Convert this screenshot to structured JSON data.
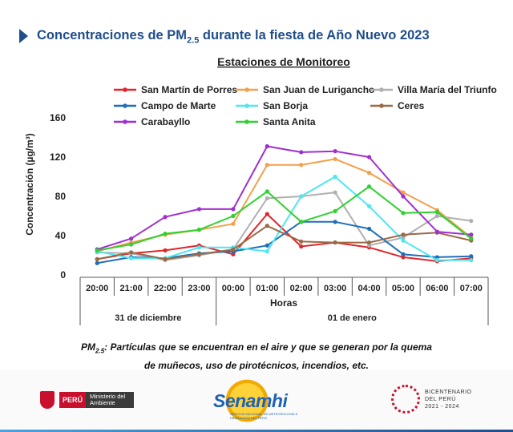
{
  "header": {
    "title_main": "Concentraciones  de PM",
    "title_sub": "2.5",
    "title_tail": " durante la fiesta de Año Nuevo 2023"
  },
  "chart_data": {
    "type": "line",
    "title": "Estaciones de Monitoreo",
    "xlabel": "Horas",
    "ylabel": "Concentración (µg/m³)",
    "ylim": [
      0,
      160
    ],
    "yticks": [
      0,
      40,
      80,
      120,
      160
    ],
    "grid": false,
    "legend_position": "top",
    "categories": [
      "20:00",
      "21:00",
      "22:00",
      "23:00",
      "00:00",
      "01:00",
      "02:00",
      "03:00",
      "04:00",
      "05:00",
      "06:00",
      "07:00"
    ],
    "day_groups": [
      {
        "label": "31 de diciembre",
        "span": 4
      },
      {
        "label": "01 de enero",
        "span": 8
      }
    ],
    "series": [
      {
        "name": "San Martín de Porres",
        "color": "#e0262b",
        "values": [
          16,
          22,
          25,
          30,
          21,
          62,
          29,
          33,
          28,
          18,
          14,
          17
        ]
      },
      {
        "name": "San Juan de Lurigancho",
        "color": "#f4a04b",
        "values": [
          24,
          33,
          41,
          46,
          52,
          112,
          112,
          118,
          104,
          84,
          66,
          38
        ]
      },
      {
        "name": "Villa María del Triunfo",
        "color": "#b0b0b0",
        "values": [
          23,
          22,
          15,
          20,
          26,
          78,
          80,
          84,
          30,
          38,
          60,
          55
        ]
      },
      {
        "name": "Campo de Marte",
        "color": "#1f6fb8",
        "values": [
          12,
          18,
          17,
          22,
          24,
          30,
          54,
          54,
          47,
          21,
          18,
          19
        ]
      },
      {
        "name": "San Borja",
        "color": "#4ee6f0",
        "values": [
          24,
          17,
          17,
          28,
          28,
          24,
          80,
          100,
          70,
          35,
          15,
          15
        ]
      },
      {
        "name": "Ceres",
        "color": "#9a6a46",
        "values": [
          16,
          23,
          16,
          21,
          26,
          50,
          34,
          33,
          33,
          41,
          43,
          35
        ]
      },
      {
        "name": "Carabayllo",
        "color": "#a02fd0",
        "values": [
          26,
          37,
          59,
          67,
          67,
          131,
          125,
          126,
          120,
          80,
          44,
          41
        ]
      },
      {
        "name": "Santa Anita",
        "color": "#2ed12e",
        "values": [
          25,
          31,
          42,
          46,
          60,
          85,
          54,
          65,
          90,
          63,
          64,
          37
        ]
      }
    ]
  },
  "note": {
    "lead": "PM",
    "lead_sub": "2.5",
    "line1": ": Partículas que se encuentran en el aire y que se generan por la quema",
    "line2": "de muñecos, uso de pirotécnicos, incendios,  etc."
  },
  "footer": {
    "minam_peru": "PERÚ",
    "minam_ministry": "Ministerio del Ambiente",
    "senamhi_name": "Senamhi",
    "senamhi_sub": "SERVICIO NACIONAL DE METEOROLOGÍA E HIDROLOGÍA DEL PERÚ",
    "bicent_line1": "BICENTENARIO",
    "bicent_line2": "DEL PERÚ",
    "bicent_line3": "2021 - 2024"
  }
}
